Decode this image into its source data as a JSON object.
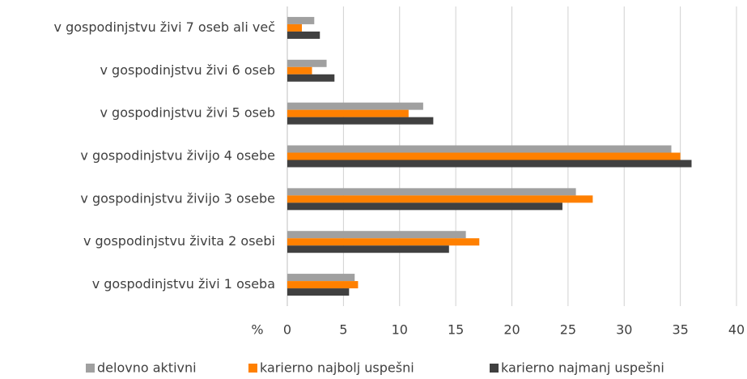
{
  "chart_data": {
    "type": "hbar",
    "categories": [
      "v gospodinjstvu živi 7 oseb ali več",
      "v gospodinjstvu živi 6 oseb",
      "v gospodinjstvu živi 5 oseb",
      "v gospodinjstvu živijo 4 osebe",
      "v gospodinjstvu živijo 3 osebe",
      "v gospodinjstvu živita 2 osebi",
      "v gospodinjstvu živi 1 oseba"
    ],
    "series": [
      {
        "name": "delovno aktivni",
        "color": "#a0a0a0",
        "values": [
          2.4,
          3.5,
          12.1,
          34.2,
          25.7,
          15.9,
          6.0
        ]
      },
      {
        "name": "karierno najbolj uspešni",
        "color": "#ff8000",
        "values": [
          1.3,
          2.2,
          10.8,
          35.0,
          27.2,
          17.1,
          6.3
        ]
      },
      {
        "name": "karierno najmanj uspešni",
        "color": "#404040",
        "values": [
          2.9,
          4.2,
          13.0,
          36.0,
          24.5,
          14.4,
          5.5
        ]
      }
    ],
    "xlabel": "%",
    "xlim": [
      0,
      40
    ],
    "xticks": [
      0,
      5,
      10,
      15,
      20,
      25,
      30,
      35,
      40
    ],
    "grid": true,
    "legend": "bottom"
  }
}
